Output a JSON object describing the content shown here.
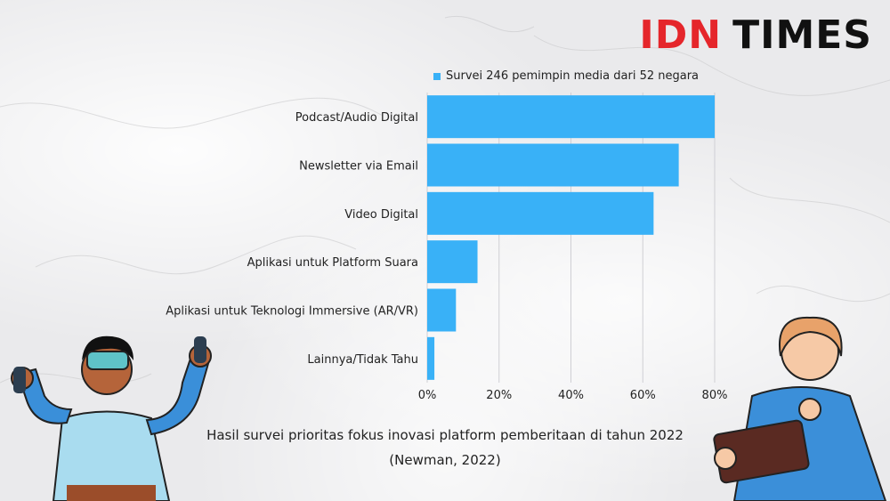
{
  "brand": {
    "part1": "IDN",
    "part2": "TIMES"
  },
  "chart_data": {
    "type": "bar",
    "orientation": "horizontal",
    "categories": [
      "Podcast/Audio Digital",
      "Newsletter via Email",
      "Video Digital",
      "Aplikasi untuk Platform Suara",
      "Aplikasi untuk Teknologi Immersive (AR/VR)",
      "Lainnya/Tidak Tahu"
    ],
    "series": [
      {
        "name": "Survei 246 pemimpin media dari 52 negara",
        "values": [
          80,
          70,
          63,
          14,
          8,
          2
        ]
      }
    ],
    "xlim": [
      0,
      80
    ],
    "xticks": [
      "0%",
      "20%",
      "40%",
      "60%",
      "80%"
    ],
    "tick_values": [
      0,
      20,
      40,
      60,
      80
    ],
    "grid": true,
    "legend_position": "top",
    "bar_color": "#39b1f7"
  },
  "caption": {
    "line1": "Hasil survei prioritas fokus inovasi platform pemberitaan di tahun 2022",
    "line2": "(Newman, 2022)"
  }
}
